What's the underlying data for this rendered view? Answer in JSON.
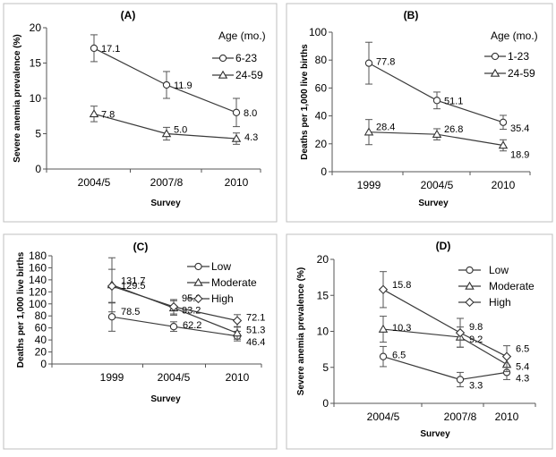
{
  "chart_data": [
    {
      "type": "line",
      "title": "(A)",
      "xlabel": "Survey",
      "ylabel": "Severe anemia prevalence (%)",
      "categories": [
        "2004/5",
        "2007/8",
        "2010"
      ],
      "ylim": [
        0,
        20
      ],
      "yticks": [
        "0",
        "5",
        "10",
        "15",
        "20"
      ],
      "legend_title": "Age (mo.)",
      "legend_position": "top-right",
      "series": [
        {
          "name": "6-23",
          "marker": "circle",
          "values": [
            17.1,
            11.9,
            8.0
          ],
          "labels": [
            "17.1",
            "11.9",
            "8.0"
          ],
          "err": [
            1.9,
            1.9,
            2.0
          ]
        },
        {
          "name": "24-59",
          "marker": "triangle",
          "values": [
            7.8,
            5.0,
            4.3
          ],
          "labels": [
            "7.8",
            "5.0",
            "4.3"
          ],
          "err": [
            1.1,
            0.9,
            0.8
          ]
        }
      ]
    },
    {
      "type": "line",
      "title": "(B)",
      "xlabel": "Survey",
      "ylabel": "Deaths per 1,000 live births",
      "categories": [
        "1999",
        "2004/5",
        "2010"
      ],
      "ylim": [
        0,
        100
      ],
      "yticks": [
        "0",
        "20",
        "40",
        "60",
        "80",
        "100"
      ],
      "legend_title": "Age (mo.)",
      "legend_position": "top-right",
      "series": [
        {
          "name": "1-23",
          "marker": "circle",
          "values": [
            77.8,
            51.1,
            35.4
          ],
          "labels": [
            "77.8",
            "51.1",
            "35.4"
          ],
          "err": [
            15,
            6,
            5
          ]
        },
        {
          "name": "24-59",
          "marker": "triangle",
          "values": [
            28.4,
            26.8,
            18.9
          ],
          "labels": [
            "28.4",
            "26.8",
            "18.9"
          ],
          "err": [
            9,
            4,
            4
          ]
        }
      ]
    },
    {
      "type": "line",
      "title": "(C)",
      "xlabel": "Survey",
      "ylabel": "Deaths per 1,000 live births",
      "categories": [
        "1999",
        "2004/5",
        "2010"
      ],
      "ylim": [
        0,
        180
      ],
      "yticks": [
        "0",
        "20",
        "40",
        "60",
        "80",
        "100",
        "120",
        "140",
        "160",
        "180"
      ],
      "legend_title": "",
      "legend_position": "top-right",
      "series": [
        {
          "name": "Low",
          "marker": "circle",
          "values": [
            78.5,
            62.2,
            46.4
          ],
          "labels": [
            "78.5",
            "62.2",
            "46.4"
          ],
          "err": [
            24,
            8,
            8
          ]
        },
        {
          "name": "Moderate",
          "marker": "triangle",
          "values": [
            131.7,
            93.2,
            51.3
          ],
          "labels": [
            "131.7",
            "93.2",
            "51.3"
          ],
          "err": [
            45,
            12,
            10
          ]
        },
        {
          "name": "High",
          "marker": "diamond",
          "values": [
            129.5,
            95.2,
            72.1
          ],
          "labels": [
            "129.5",
            "95.2",
            "72.1"
          ],
          "err": [
            28,
            12,
            10
          ]
        }
      ]
    },
    {
      "type": "line",
      "title": "(D)",
      "xlabel": "Survey",
      "ylabel": "Severe anemia prevalence (%)",
      "categories": [
        "2004/5",
        "2007/8",
        "2010"
      ],
      "ylim": [
        0,
        20
      ],
      "yticks": [
        "0",
        "5",
        "10",
        "15",
        "20"
      ],
      "legend_title": "",
      "legend_position": "top-right",
      "series": [
        {
          "name": "Low",
          "marker": "circle",
          "values": [
            6.5,
            3.3,
            4.3
          ],
          "labels": [
            "6.5",
            "3.3",
            "4.3"
          ],
          "err": [
            1.4,
            1.0,
            1.0
          ]
        },
        {
          "name": "Moderate",
          "marker": "triangle",
          "values": [
            10.3,
            9.2,
            5.4
          ],
          "labels": [
            "10.3",
            "9.2",
            "5.4"
          ],
          "err": [
            1.8,
            1.4,
            1.0
          ]
        },
        {
          "name": "High",
          "marker": "diamond",
          "values": [
            15.8,
            9.8,
            6.5
          ],
          "labels": [
            "15.8",
            "9.8",
            "6.5"
          ],
          "err": [
            2.5,
            2.0,
            1.5
          ]
        }
      ]
    }
  ]
}
